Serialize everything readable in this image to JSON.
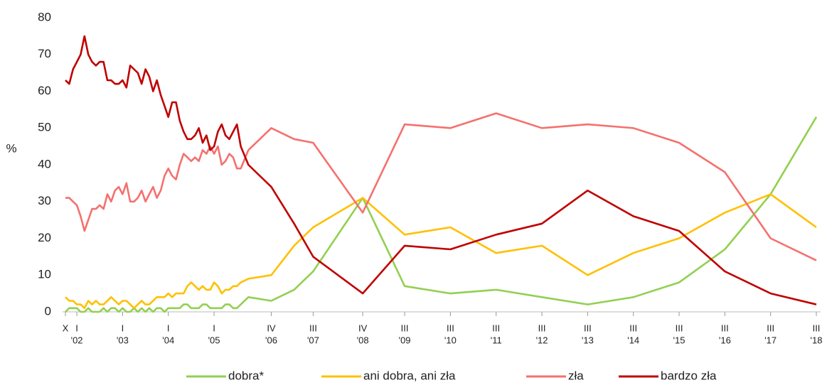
{
  "chart_data": {
    "type": "line",
    "ylabel": "%",
    "x": [
      "2001-10",
      "2001-11",
      "2001-12",
      "2002-01",
      "2002-02",
      "2002-03",
      "2002-04",
      "2002-05",
      "2002-06",
      "2002-07",
      "2002-08",
      "2002-09",
      "2002-10",
      "2002-11",
      "2002-12",
      "2003-01",
      "2003-02",
      "2003-03",
      "2003-04",
      "2003-05",
      "2003-06",
      "2003-07",
      "2003-08",
      "2003-09",
      "2003-10",
      "2003-11",
      "2003-12",
      "2004-01",
      "2004-02",
      "2004-03",
      "2004-04",
      "2004-05",
      "2004-06",
      "2004-07",
      "2004-08",
      "2004-09",
      "2004-10",
      "2004-11",
      "2004-12",
      "2005-01",
      "2005-02",
      "2005-03",
      "2005-04",
      "2005-05",
      "2005-06",
      "2005-07",
      "2005-08",
      "2005-10",
      "2006-04",
      "2006-10",
      "2007-03",
      "2008-04",
      "2009-03",
      "2010-03",
      "2011-03",
      "2012-03",
      "2013-03",
      "2014-03",
      "2015-03",
      "2016-03",
      "2017-03",
      "2018-03"
    ],
    "series": [
      {
        "name": "dobra*",
        "color": "#92d050",
        "values": [
          0,
          1,
          1,
          1,
          0,
          0,
          1,
          0,
          0,
          0,
          1,
          0,
          1,
          1,
          0,
          1,
          0,
          0,
          1,
          0,
          1,
          0,
          1,
          0,
          1,
          1,
          0,
          1,
          1,
          1,
          1,
          2,
          2,
          1,
          1,
          1,
          2,
          2,
          1,
          1,
          1,
          1,
          2,
          2,
          1,
          1,
          2,
          4,
          3,
          6,
          11,
          31,
          7,
          5,
          6,
          4,
          2,
          4,
          8,
          17,
          32,
          53
        ]
      },
      {
        "name": "ani dobra, ani zła",
        "color": "#ffc000",
        "values": [
          4,
          3,
          3,
          2,
          2,
          1,
          3,
          2,
          3,
          2,
          2,
          3,
          4,
          3,
          2,
          3,
          3,
          2,
          1,
          2,
          3,
          2,
          2,
          3,
          4,
          4,
          4,
          5,
          4,
          5,
          5,
          5,
          7,
          8,
          7,
          6,
          7,
          6,
          6,
          8,
          7,
          5,
          6,
          6,
          7,
          7,
          8,
          9,
          10,
          18,
          23,
          31,
          21,
          23,
          16,
          18,
          10,
          16,
          20,
          27,
          32,
          23
        ]
      },
      {
        "name": "zła",
        "color": "#f4716e",
        "values": [
          31,
          31,
          30,
          29,
          26,
          22,
          25,
          28,
          28,
          29,
          28,
          32,
          30,
          33,
          34,
          32,
          35,
          30,
          30,
          31,
          33,
          30,
          32,
          34,
          31,
          33,
          37,
          39,
          37,
          36,
          40,
          43,
          42,
          41,
          42,
          41,
          44,
          43,
          45,
          43,
          45,
          40,
          41,
          43,
          42,
          39,
          39,
          44,
          50,
          47,
          46,
          27,
          51,
          50,
          54,
          50,
          51,
          50,
          46,
          38,
          20,
          14
        ]
      },
      {
        "name": "bardzo zła",
        "color": "#c00000",
        "values": [
          63,
          62,
          66,
          68,
          70,
          75,
          70,
          68,
          67,
          68,
          68,
          63,
          63,
          62,
          62,
          63,
          61,
          67,
          66,
          65,
          62,
          66,
          64,
          60,
          63,
          59,
          56,
          53,
          57,
          57,
          52,
          49,
          47,
          47,
          48,
          50,
          46,
          48,
          44,
          45,
          49,
          51,
          48,
          47,
          49,
          51,
          45,
          40,
          34,
          24,
          15,
          5,
          18,
          17,
          21,
          24,
          33,
          26,
          22,
          11,
          5,
          2
        ]
      }
    ],
    "xlim": [
      "2001-10",
      "2018-03"
    ],
    "xticks": [
      {
        "value": "2001-10",
        "label": [
          "X"
        ]
      },
      {
        "value": "2002-01",
        "label": [
          "I",
          "'02"
        ]
      },
      {
        "value": "2003-01",
        "label": [
          "I",
          "'03"
        ]
      },
      {
        "value": "2004-01",
        "label": [
          "I",
          "'04"
        ]
      },
      {
        "value": "2005-01",
        "label": [
          "I",
          "'05"
        ]
      },
      {
        "value": "2006-04",
        "label": [
          "IV",
          "'06"
        ]
      },
      {
        "value": "2007-03",
        "label": [
          "III",
          "'07"
        ]
      },
      {
        "value": "2008-04",
        "label": [
          "IV",
          "'08"
        ]
      },
      {
        "value": "2009-03",
        "label": [
          "III",
          "'09"
        ]
      },
      {
        "value": "2010-03",
        "label": [
          "III",
          "'10"
        ]
      },
      {
        "value": "2011-03",
        "label": [
          "III",
          "'11"
        ]
      },
      {
        "value": "2012-03",
        "label": [
          "III",
          "'12"
        ]
      },
      {
        "value": "2013-03",
        "label": [
          "III",
          "'13"
        ]
      },
      {
        "value": "2014-03",
        "label": [
          "III",
          "'14"
        ]
      },
      {
        "value": "2015-03",
        "label": [
          "III",
          "'15"
        ]
      },
      {
        "value": "2016-03",
        "label": [
          "III",
          "'16"
        ]
      },
      {
        "value": "2017-03",
        "label": [
          "III",
          "'17"
        ]
      },
      {
        "value": "2018-03",
        "label": [
          "III",
          "'18"
        ]
      }
    ],
    "ylim": [
      0,
      80
    ],
    "yticks": [
      0,
      10,
      20,
      30,
      40,
      50,
      60,
      70,
      80
    ],
    "legend": "bottom"
  }
}
